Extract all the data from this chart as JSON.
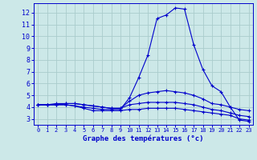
{
  "title": "Graphe des températures (°c)",
  "background_color": "#cce8e8",
  "grid_color": "#aacccc",
  "line_color": "#0000cc",
  "xlim": [
    -0.5,
    23.5
  ],
  "ylim": [
    2.5,
    12.8
  ],
  "x_ticks": [
    0,
    1,
    2,
    3,
    4,
    5,
    6,
    7,
    8,
    9,
    10,
    11,
    12,
    13,
    14,
    15,
    16,
    17,
    18,
    19,
    20,
    21,
    22,
    23
  ],
  "y_ticks": [
    3,
    4,
    5,
    6,
    7,
    8,
    9,
    10,
    11,
    12
  ],
  "series": [
    {
      "x": [
        0,
        1,
        2,
        3,
        4,
        5,
        6,
        7,
        8,
        9,
        10,
        11,
        12,
        13,
        14,
        15,
        16,
        17,
        18,
        19,
        20,
        21,
        22,
        23
      ],
      "y": [
        4.2,
        4.2,
        4.2,
        4.2,
        4.1,
        4.0,
        3.9,
        3.8,
        3.8,
        3.8,
        4.8,
        6.5,
        8.4,
        11.5,
        11.8,
        12.4,
        12.3,
        9.3,
        7.2,
        5.8,
        5.3,
        4.0,
        2.9,
        2.8
      ]
    },
    {
      "x": [
        0,
        1,
        2,
        3,
        4,
        5,
        6,
        7,
        8,
        9,
        10,
        11,
        12,
        13,
        14,
        15,
        16,
        17,
        18,
        19,
        20,
        21,
        22,
        23
      ],
      "y": [
        4.2,
        4.2,
        4.2,
        4.3,
        4.3,
        4.2,
        4.1,
        4.0,
        3.9,
        3.9,
        4.5,
        5.0,
        5.2,
        5.3,
        5.4,
        5.3,
        5.2,
        5.0,
        4.7,
        4.3,
        4.2,
        4.0,
        3.8,
        3.7
      ]
    },
    {
      "x": [
        0,
        1,
        2,
        3,
        4,
        5,
        6,
        7,
        8,
        9,
        10,
        11,
        12,
        13,
        14,
        15,
        16,
        17,
        18,
        19,
        20,
        21,
        22,
        23
      ],
      "y": [
        4.2,
        4.2,
        4.2,
        4.2,
        4.1,
        3.9,
        3.7,
        3.7,
        3.7,
        3.7,
        3.8,
        3.8,
        3.9,
        3.9,
        3.9,
        3.9,
        3.8,
        3.7,
        3.6,
        3.5,
        3.4,
        3.3,
        3.0,
        2.9
      ]
    },
    {
      "x": [
        0,
        1,
        2,
        3,
        4,
        5,
        6,
        7,
        8,
        9,
        10,
        11,
        12,
        13,
        14,
        15,
        16,
        17,
        18,
        19,
        20,
        21,
        22,
        23
      ],
      "y": [
        4.2,
        4.2,
        4.3,
        4.3,
        4.3,
        4.2,
        4.1,
        4.0,
        3.9,
        3.9,
        4.2,
        4.3,
        4.4,
        4.4,
        4.4,
        4.4,
        4.3,
        4.2,
        4.0,
        3.8,
        3.7,
        3.5,
        3.3,
        3.2
      ]
    }
  ]
}
